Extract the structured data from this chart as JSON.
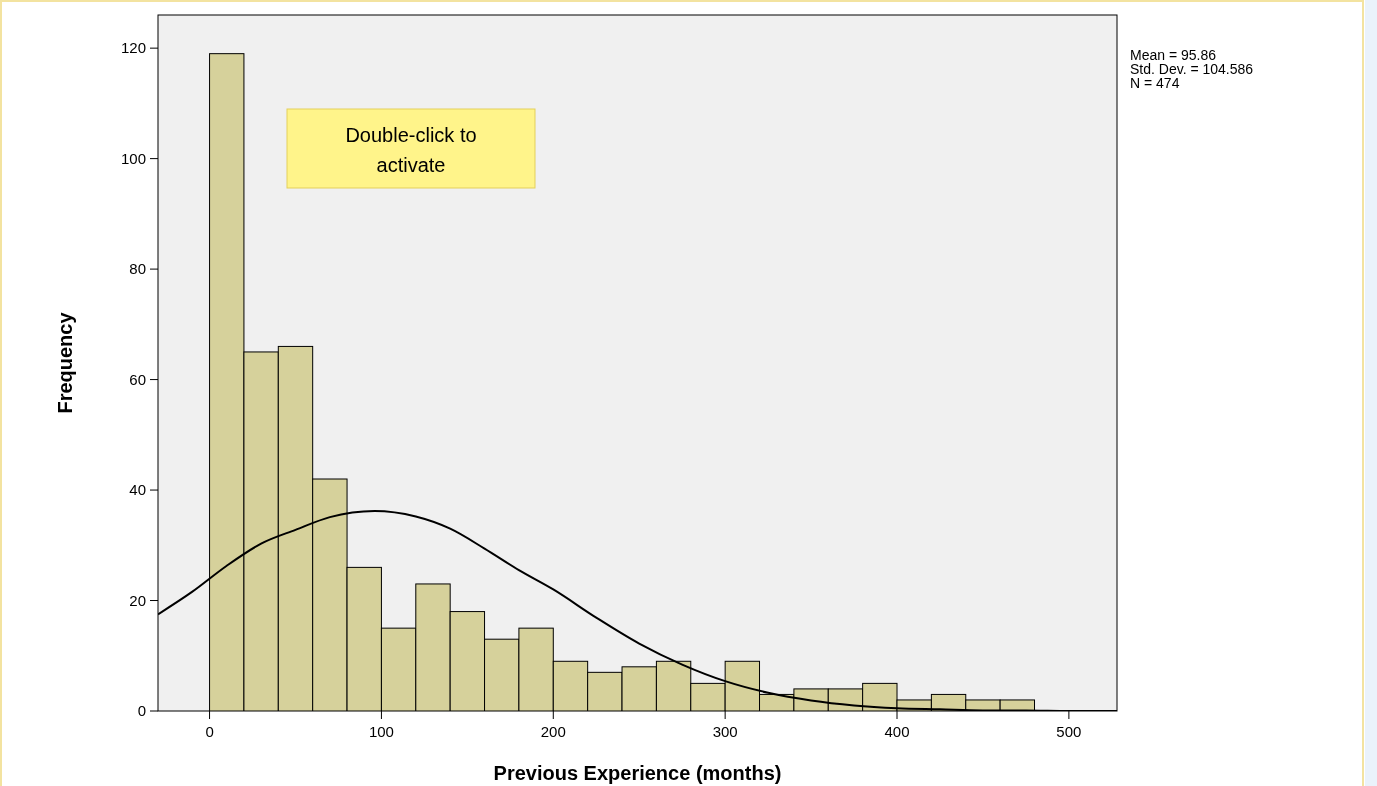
{
  "chart_data": {
    "type": "histogram",
    "xlabel": "Previous Experience (months)",
    "ylabel": "Frequency",
    "bins": [
      0,
      20,
      40,
      60,
      80,
      100,
      120,
      140,
      160,
      180,
      200,
      220,
      240,
      260,
      280,
      300,
      320,
      340,
      360,
      380,
      400,
      420,
      440,
      460,
      480
    ],
    "values": [
      119,
      65,
      66,
      42,
      26,
      15,
      23,
      18,
      13,
      15,
      9,
      7,
      8,
      9,
      5,
      9,
      3,
      4,
      4,
      5,
      2,
      3,
      2,
      2
    ],
    "color": "#d6d19b",
    "series": [
      {
        "type": "line",
        "color": "#000000",
        "x": [
          -30,
          -10,
          10,
          30,
          50,
          70,
          96,
          120,
          140,
          160,
          180,
          200,
          225,
          250,
          275,
          300,
          325,
          350,
          375,
          400,
          425,
          450,
          475,
          500,
          528
        ],
        "values": [
          17.5,
          21.6,
          26.3,
          30.3,
          32.8,
          35.1,
          36.2,
          35.2,
          33.0,
          29.4,
          25.5,
          22.0,
          16.9,
          12.2,
          8.4,
          5.4,
          3.3,
          1.9,
          1.0,
          0.5,
          0.3,
          0.1,
          0.1,
          0.0,
          0.0
        ]
      }
    ],
    "xlim": [
      -30,
      528
    ],
    "ylim": [
      0,
      126
    ],
    "xticks": [
      0,
      100,
      200,
      300,
      400,
      500
    ],
    "yticks": [
      0,
      20,
      40,
      60,
      80,
      100,
      120
    ],
    "grid": false,
    "annotations": [
      "Mean = 95.86",
      "Std. Dev. = 104.586",
      "N = 474",
      "Double-click to activate"
    ]
  }
}
